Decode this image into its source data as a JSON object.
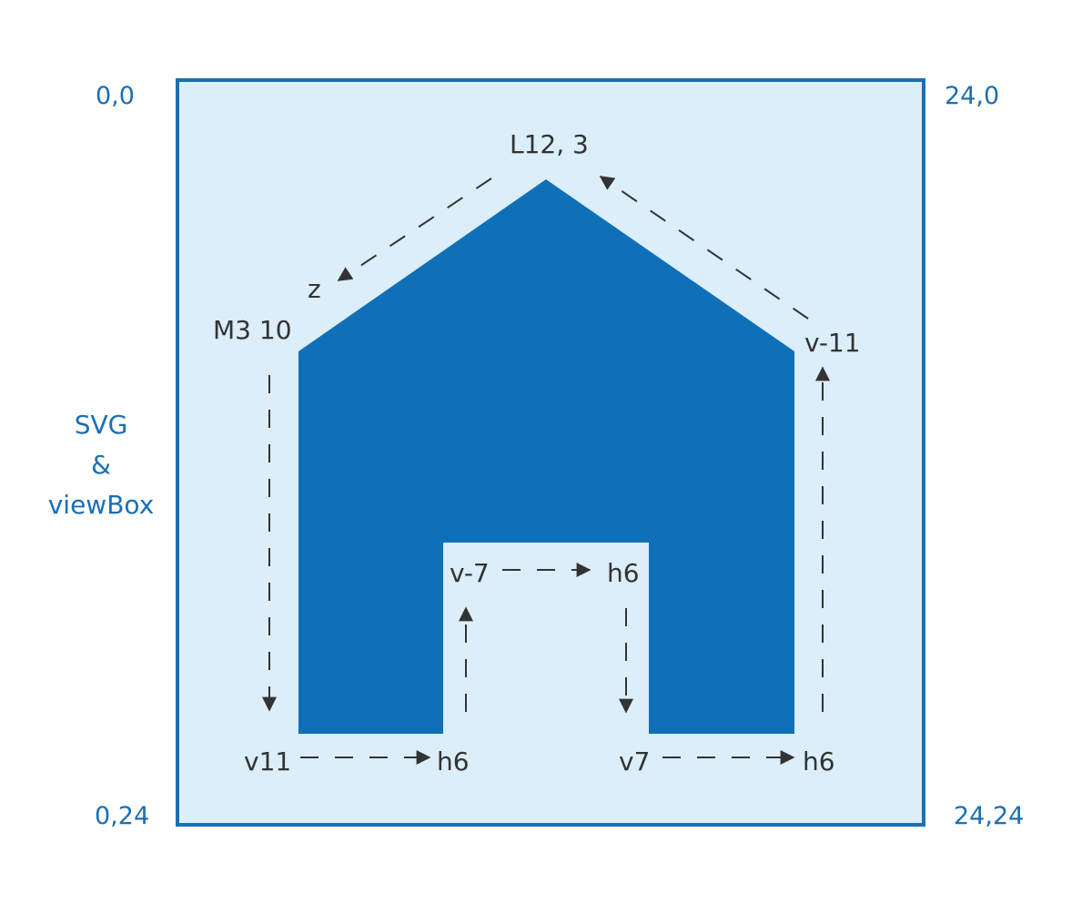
{
  "colors": {
    "canvas_bg": "#dbeef9",
    "canvas_border": "#1a6fb5",
    "house_fill": "#1070b7",
    "label_blue": "#1a6fb5",
    "label_dark": "#333333"
  },
  "corners": {
    "top_left": "0,0",
    "top_right": "24,0",
    "bottom_left": "0,24",
    "bottom_right": "24,24"
  },
  "side_title": {
    "line1": "SVG",
    "line2": "&",
    "line3": "viewBox"
  },
  "path_commands": {
    "move": "M3 10",
    "line_to_peak": "L12, 3",
    "close": "z",
    "v_down_left": "v11",
    "h_right_1": "h6",
    "v_up_door": "v-7",
    "h_right_door": "h6",
    "v_down_door": "v7",
    "h_right_2": "h6",
    "v_up_right": "v-11"
  }
}
